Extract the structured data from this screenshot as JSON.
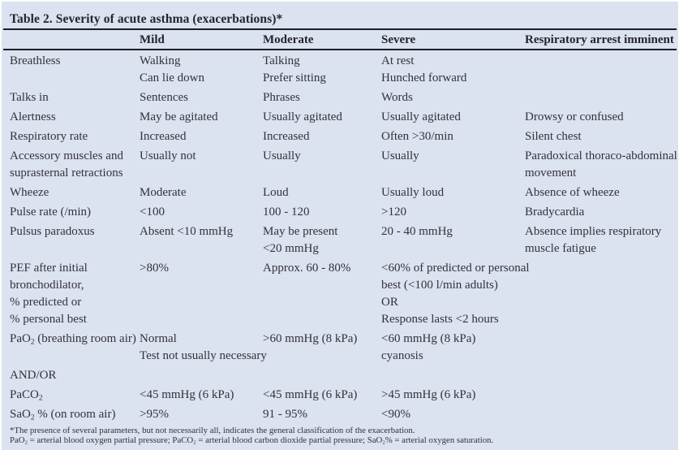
{
  "title": "Table 2. Severity of acute asthma (exacerbations)*",
  "colors": {
    "panel_background": "#dbe2f0",
    "rule": "#1e1e26",
    "text": "#33333b"
  },
  "table": {
    "columns": [
      "",
      "Mild",
      "Moderate",
      "Severe",
      "Respiratory arrest imminent"
    ],
    "rows": [
      {
        "label": [
          "Breathless"
        ],
        "cells": [
          [
            "Walking",
            "Can lie down"
          ],
          [
            "Talking",
            "Prefer sitting"
          ],
          [
            "At rest",
            "Hunched forward"
          ],
          []
        ]
      },
      {
        "label": [
          "Talks in"
        ],
        "cells": [
          [
            "Sentences"
          ],
          [
            "Phrases"
          ],
          [
            "Words"
          ],
          []
        ]
      },
      {
        "label": [
          "Alertness"
        ],
        "cells": [
          [
            "May be agitated"
          ],
          [
            "Usually agitated"
          ],
          [
            "Usually agitated"
          ],
          [
            "Drowsy or confused"
          ]
        ]
      },
      {
        "label": [
          "Respiratory rate"
        ],
        "cells": [
          [
            "Increased"
          ],
          [
            "Increased"
          ],
          [
            "Often >30/min"
          ],
          [
            "Silent chest"
          ]
        ]
      },
      {
        "label": [
          "Accessory muscles and",
          "suprasternal retractions"
        ],
        "cells": [
          [
            "Usually not"
          ],
          [
            "Usually"
          ],
          [
            "Usually"
          ],
          [
            "Paradoxical thoraco-abdominal",
            "movement"
          ]
        ]
      },
      {
        "label": [
          "Wheeze"
        ],
        "cells": [
          [
            "Moderate"
          ],
          [
            "Loud"
          ],
          [
            "Usually loud"
          ],
          [
            "Absence of wheeze"
          ]
        ]
      },
      {
        "label": [
          "Pulse rate (/min)"
        ],
        "cells": [
          [
            "<100"
          ],
          [
            "100 - 120"
          ],
          [
            ">120"
          ],
          [
            "Bradycardia"
          ]
        ]
      },
      {
        "label": [
          "Pulsus paradoxus"
        ],
        "cells": [
          [
            "Absent <10 mmHg"
          ],
          [
            "May be present",
            "<20 mmHg"
          ],
          [
            "20 - 40 mmHg"
          ],
          [
            "Absence implies respiratory",
            "muscle fatigue"
          ]
        ]
      },
      {
        "label": [
          "PEF after initial",
          "bronchodilator,",
          "% predicted or",
          "% personal best"
        ],
        "cells": [
          [
            ">80%"
          ],
          [
            "Approx. 60 - 80%"
          ],
          [
            "<60% of predicted or personal",
            "best (<100 l/min adults)",
            "OR",
            "Response lasts <2 hours"
          ],
          []
        ]
      },
      {
        "label": [
          [
            "PaO",
            {
              "sub": "2"
            },
            " (breathing room air)"
          ]
        ],
        "cells": [
          [
            "Normal",
            "Test not usually necessary"
          ],
          [
            ">60 mmHg (8 kPa)"
          ],
          [
            "<60 mmHg (8 kPa)",
            "cyanosis"
          ],
          []
        ]
      },
      {
        "label": [
          "AND/OR"
        ],
        "cells": [
          [],
          [],
          [],
          []
        ]
      },
      {
        "label": [
          [
            "PaCO",
            {
              "sub": "2"
            }
          ]
        ],
        "cells": [
          [
            "<45 mmHg (6 kPa)"
          ],
          [
            "<45 mmHg (6 kPa)"
          ],
          [
            ">45 mmHg (6 kPa)"
          ],
          []
        ]
      },
      {
        "label": [
          [
            "SaO",
            {
              "sub": "2"
            },
            " % (on room air)"
          ]
        ],
        "cells": [
          [
            ">95%"
          ],
          [
            "91 - 95%"
          ],
          [
            "<90%"
          ],
          []
        ]
      }
    ]
  },
  "footnotes": [
    "*The presence of several parameters, but not necessarily all, indicates the general classification of the exacerbation.",
    [
      "PaO",
      {
        "sub": "2"
      },
      " = arterial blood oxygen partial pressure; PaCO",
      {
        "sub": "2"
      },
      " = arterial blood carbon dioxide partial pressure; SaO",
      {
        "sub": "2"
      },
      "% = arterial oxygen saturation."
    ]
  ]
}
